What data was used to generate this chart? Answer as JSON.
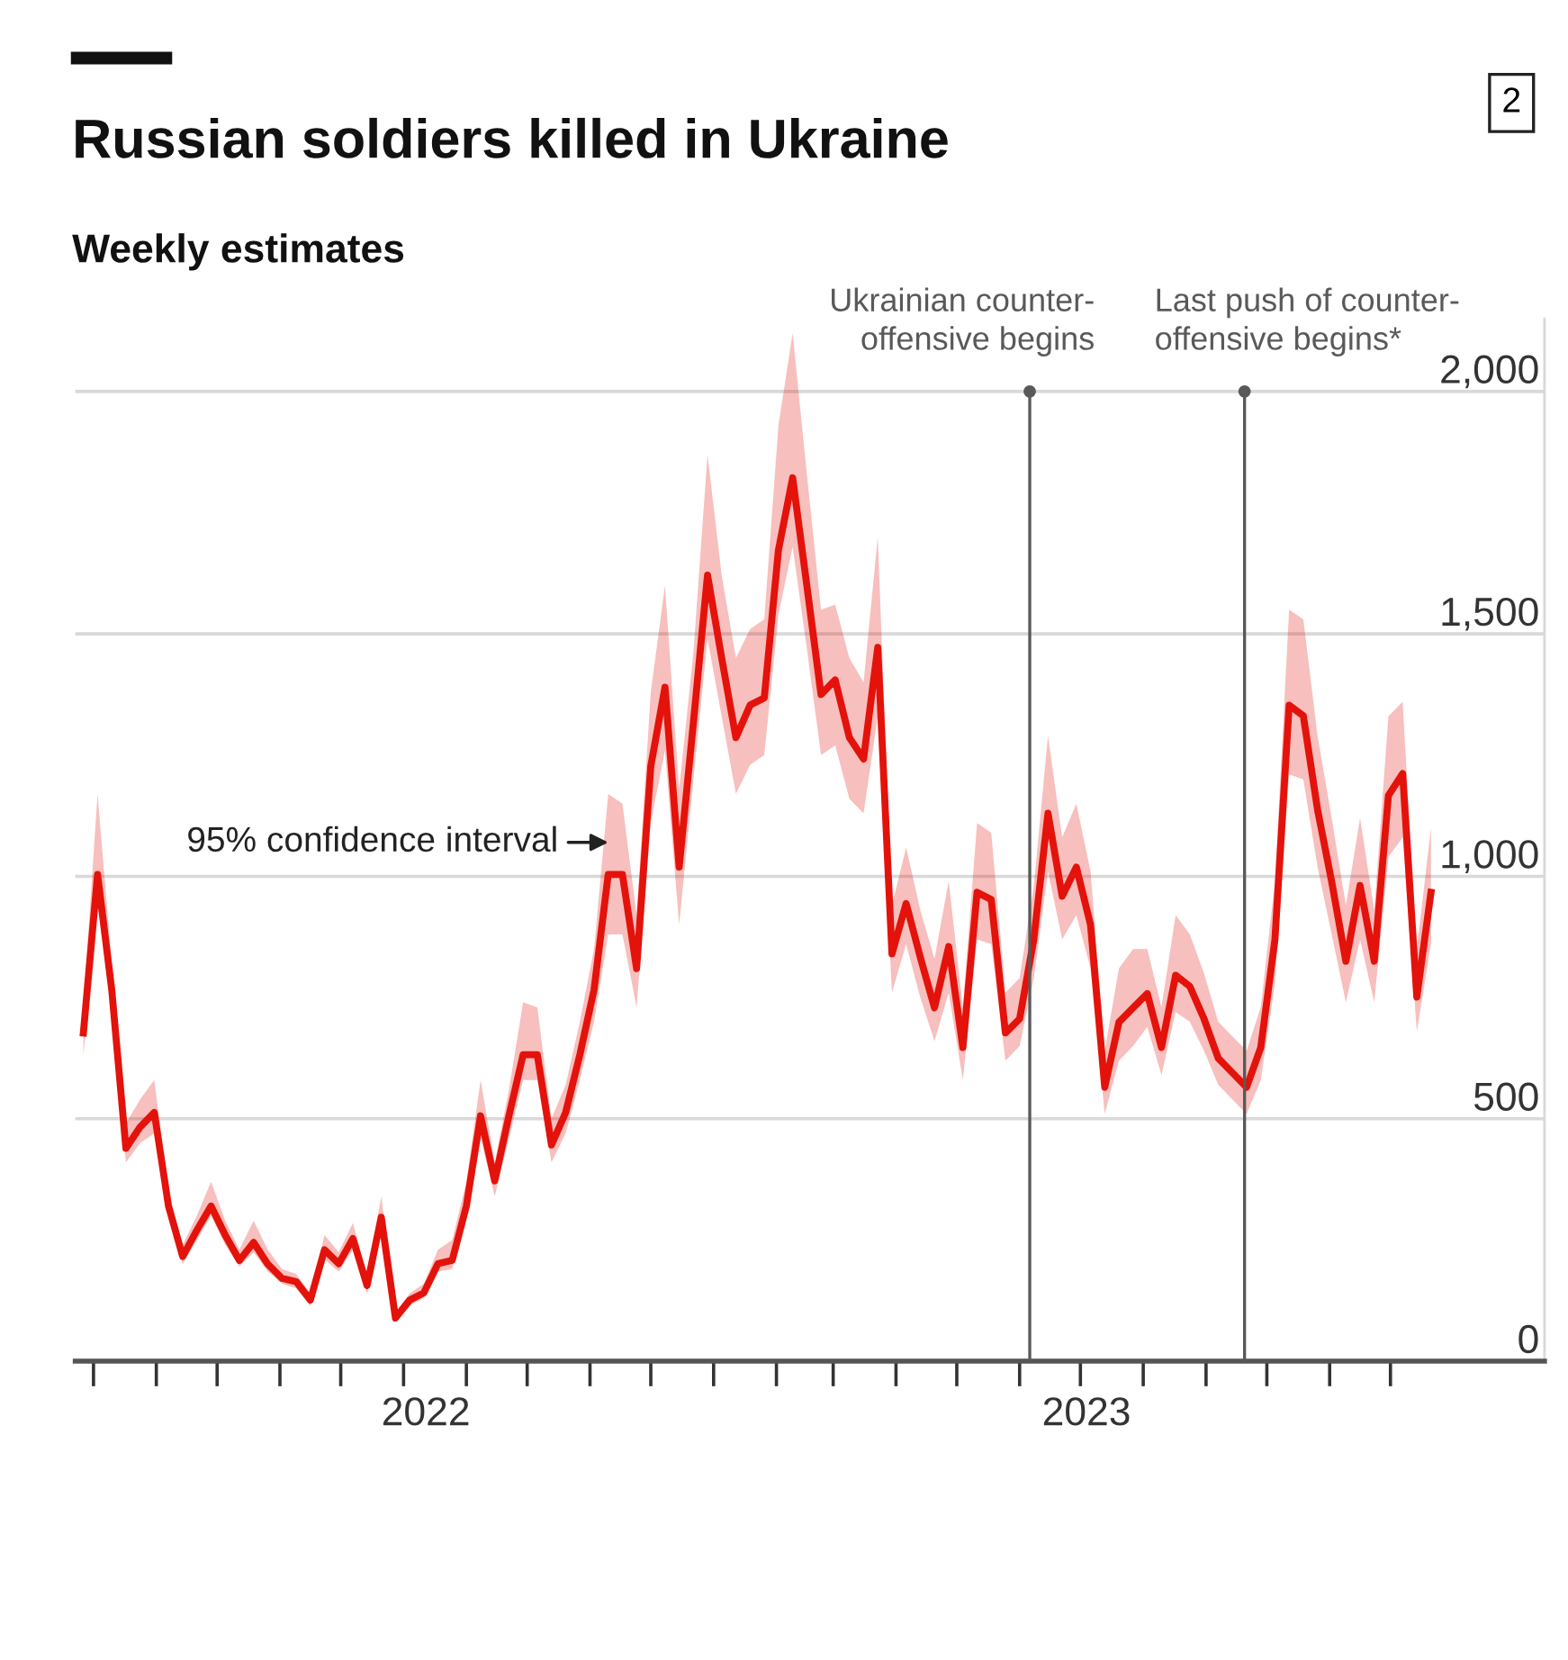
{
  "chart_data": {
    "type": "line",
    "title": "Russian soldiers killed in Ukraine",
    "subtitle": "Weekly estimates",
    "x": [
      "2022-02-24",
      "2022-03-03",
      "2022-03-10",
      "2022-03-17",
      "2022-03-24",
      "2022-03-31",
      "2022-04-07",
      "2022-04-14",
      "2022-04-21",
      "2022-04-28",
      "2022-05-05",
      "2022-05-12",
      "2022-05-19",
      "2022-05-26",
      "2022-06-02",
      "2022-06-09",
      "2022-06-16",
      "2022-06-23",
      "2022-06-30",
      "2022-07-07",
      "2022-07-14",
      "2022-07-21",
      "2022-07-28",
      "2022-08-04",
      "2022-08-11",
      "2022-08-18",
      "2022-08-25",
      "2022-09-01",
      "2022-09-08",
      "2022-09-15",
      "2022-09-22",
      "2022-09-29",
      "2022-10-06",
      "2022-10-13",
      "2022-10-20",
      "2022-10-27",
      "2022-11-03",
      "2022-11-10",
      "2022-11-17",
      "2022-11-24",
      "2022-12-01",
      "2022-12-08",
      "2022-12-15",
      "2022-12-22",
      "2022-12-29",
      "2023-01-05",
      "2023-01-12",
      "2023-01-19",
      "2023-01-26",
      "2023-02-02",
      "2023-02-09",
      "2023-02-16",
      "2023-02-23",
      "2023-03-02",
      "2023-03-09",
      "2023-03-16",
      "2023-03-23",
      "2023-03-30",
      "2023-04-06",
      "2023-04-13",
      "2023-04-20",
      "2023-04-27",
      "2023-05-04",
      "2023-05-11",
      "2023-05-18",
      "2023-05-25",
      "2023-06-01",
      "2023-06-08",
      "2023-06-15",
      "2023-06-22",
      "2023-06-29",
      "2023-07-06",
      "2023-07-13",
      "2023-07-20",
      "2023-07-27",
      "2023-08-03",
      "2023-08-10",
      "2023-08-17",
      "2023-08-24",
      "2023-08-31",
      "2023-09-07",
      "2023-09-14",
      "2023-09-21",
      "2023-09-28",
      "2023-10-05",
      "2023-10-12",
      "2023-10-19",
      "2023-10-26",
      "2023-11-02",
      "2023-11-09",
      "2023-11-16",
      "2023-11-23",
      "2023-11-30",
      "2023-12-07",
      "2023-12-14",
      "2023-12-21"
    ],
    "series": [
      {
        "color": "#e3120b",
        "values": [
          677,
          1004,
          766,
          439,
          483,
          513,
          320,
          216,
          270,
          320,
          260,
          208,
          245,
          200,
          171,
          164,
          126,
          230,
          201,
          253,
          156,
          297,
          89,
          126,
          141,
          201,
          208,
          320,
          506,
          372,
          506,
          632,
          632,
          446,
          513,
          632,
          766,
          1004,
          1004,
          810,
          1227,
          1390,
          1019,
          1316,
          1621,
          1450,
          1286,
          1353,
          1368,
          1673,
          1822,
          1600,
          1375,
          1405,
          1286,
          1242,
          1472,
          840,
          944,
          833,
          729,
          855,
          647,
          967,
          952,
          677,
          706,
          870,
          1130,
          959,
          1019,
          900,
          565,
          699,
          729,
          758,
          647,
          796,
          773,
          706,
          625,
          595,
          565,
          647,
          870,
          1353,
          1331,
          1138,
          989,
          825,
          981,
          825,
          1167,
          1212,
          751,
          967
        ],
        "lower": [
          630,
          940,
          720,
          410,
          450,
          470,
          300,
          200,
          250,
          300,
          240,
          195,
          225,
          185,
          160,
          150,
          115,
          210,
          185,
          230,
          140,
          270,
          80,
          115,
          130,
          185,
          190,
          295,
          460,
          340,
          460,
          580,
          580,
          410,
          470,
          580,
          700,
          880,
          880,
          730,
          1110,
          1260,
          900,
          1200,
          1490,
          1330,
          1170,
          1230,
          1250,
          1540,
          1680,
          1470,
          1250,
          1270,
          1160,
          1130,
          1330,
          760,
          860,
          750,
          660,
          760,
          580,
          870,
          860,
          620,
          650,
          790,
          1010,
          870,
          920,
          810,
          510,
          620,
          650,
          690,
          590,
          720,
          700,
          640,
          570,
          540,
          510,
          580,
          780,
          1210,
          1200,
          1020,
          880,
          740,
          870,
          740,
          1040,
          1080,
          680,
          860
        ],
        "upper": [
          730,
          1170,
          820,
          490,
          540,
          580,
          350,
          240,
          300,
          370,
          290,
          230,
          290,
          230,
          190,
          180,
          140,
          260,
          225,
          285,
          175,
          340,
          100,
          140,
          160,
          230,
          250,
          370,
          580,
          410,
          560,
          740,
          730,
          500,
          570,
          700,
          850,
          1170,
          1150,
          920,
          1380,
          1600,
          1180,
          1460,
          1870,
          1620,
          1450,
          1510,
          1530,
          1930,
          2120,
          1830,
          1550,
          1560,
          1450,
          1400,
          1700,
          940,
          1060,
          930,
          830,
          990,
          730,
          1110,
          1090,
          760,
          790,
          980,
          1290,
          1080,
          1150,
          1010,
          640,
          810,
          850,
          850,
          730,
          920,
          880,
          800,
          700,
          670,
          640,
          730,
          990,
          1550,
          1530,
          1290,
          1120,
          940,
          1120,
          930,
          1330,
          1360,
          850,
          1100
        ]
      }
    ],
    "xlim": [
      "2022-02-20",
      "2024-02-15"
    ],
    "xticks": [
      {
        "value": "2022-03-01",
        "label": null
      },
      {
        "value": "2022-04-01",
        "label": null
      },
      {
        "value": "2022-05-01",
        "label": null
      },
      {
        "value": "2022-06-01",
        "label": null
      },
      {
        "value": "2022-07-01",
        "label": null
      },
      {
        "value": "2022-08-01",
        "label": null
      },
      {
        "value": "2022-08-12",
        "label": "2022"
      },
      {
        "value": "2022-09-01",
        "label": null
      },
      {
        "value": "2022-10-01",
        "label": null
      },
      {
        "value": "2022-11-01",
        "label": null
      },
      {
        "value": "2022-12-01",
        "label": null
      },
      {
        "value": "2023-01-01",
        "label": null
      },
      {
        "value": "2023-02-01",
        "label": null
      },
      {
        "value": "2023-03-01",
        "label": null
      },
      {
        "value": "2023-04-01",
        "label": null
      },
      {
        "value": "2023-05-01",
        "label": null
      },
      {
        "value": "2023-06-01",
        "label": null
      },
      {
        "value": "2023-07-01",
        "label": null
      },
      {
        "value": "2023-07-04",
        "label": "2023"
      },
      {
        "value": "2023-08-01",
        "label": null
      },
      {
        "value": "2023-09-01",
        "label": null
      },
      {
        "value": "2023-10-01",
        "label": null
      },
      {
        "value": "2023-11-01",
        "label": null
      },
      {
        "value": "2023-12-01",
        "label": null
      }
    ],
    "ylim": [
      0,
      2150
    ],
    "yticks": [
      0,
      500,
      {
        "value": 1000,
        "label": "1,000"
      },
      {
        "value": 1500,
        "label": "1,500"
      },
      {
        "value": 2000,
        "label": "2,000"
      }
    ],
    "ref_lines": [
      {
        "axis": "x",
        "value": "2023-06-06",
        "label": "Ukrainian counter-\noffensive begins",
        "color": "#595959"
      },
      {
        "axis": "x",
        "value": "2023-09-20",
        "label": "Last push of counter-\noffensive begins*",
        "color": "#595959"
      }
    ],
    "annotations": [
      {
        "text": "95% confidence interval",
        "x": "2022-11-10",
        "y": 1070
      },
      "2"
    ],
    "grid": "y",
    "legend": false,
    "marker": "none",
    "line_style": "solid"
  }
}
